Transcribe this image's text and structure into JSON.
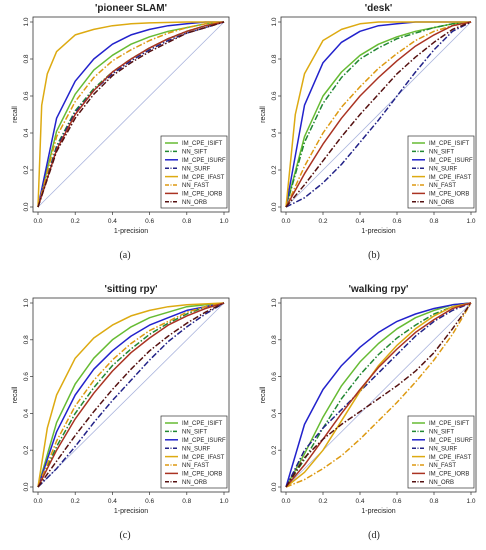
{
  "figure": {
    "panels": [
      {
        "caption": "(a)"
      },
      {
        "caption": "(b)"
      },
      {
        "caption": "(c)"
      },
      {
        "caption": "(d)"
      }
    ]
  },
  "legend_entries": [
    {
      "name": "IM_CPE_ISIFT",
      "color": "#66bb33",
      "dash": "solid"
    },
    {
      "name": "NN_SIFT",
      "color": "#228833",
      "dash": "dashdot"
    },
    {
      "name": "IM_CPE_ISURF",
      "color": "#2222cc",
      "dash": "solid"
    },
    {
      "name": "NN_SURF",
      "color": "#222288",
      "dash": "dashdot"
    },
    {
      "name": "IM_CPE_IFAST",
      "color": "#ddaa11",
      "dash": "solid"
    },
    {
      "name": "NN_FAST",
      "color": "#dd9911",
      "dash": "dashdot"
    },
    {
      "name": "IM_CPE_IORB",
      "color": "#aa3322",
      "dash": "solid"
    },
    {
      "name": "NN_ORB",
      "color": "#551111",
      "dash": "dashdot"
    }
  ],
  "chart_data": [
    {
      "type": "line",
      "title": "'pioneer SLAM'",
      "xlabel": "1-precision",
      "ylabel": "recall",
      "xlim": [
        0,
        1
      ],
      "ylim": [
        0,
        1
      ],
      "xticks": [
        "0.0",
        "0.2",
        "0.4",
        "0.6",
        "0.8",
        "1.0"
      ],
      "yticks": [
        "0.0",
        "0.2",
        "0.4",
        "0.6",
        "0.8",
        "1.0"
      ],
      "legend": "bottom-right",
      "series": [
        {
          "name": "IM_CPE_ISIFT",
          "x": [
            0,
            0.1,
            0.2,
            0.3,
            0.4,
            0.5,
            0.6,
            0.7,
            0.8,
            0.9,
            1.0
          ],
          "y": [
            0,
            0.41,
            0.61,
            0.74,
            0.82,
            0.88,
            0.92,
            0.95,
            0.97,
            0.99,
            1.0
          ]
        },
        {
          "name": "NN_SIFT",
          "x": [
            0,
            0.1,
            0.2,
            0.3,
            0.4,
            0.5,
            0.6,
            0.7,
            0.8,
            0.9,
            1.0
          ],
          "y": [
            0,
            0.33,
            0.52,
            0.64,
            0.73,
            0.8,
            0.86,
            0.91,
            0.95,
            0.98,
            1.0
          ]
        },
        {
          "name": "IM_CPE_ISURF",
          "x": [
            0,
            0.1,
            0.2,
            0.3,
            0.4,
            0.5,
            0.6,
            0.7,
            0.8,
            0.9,
            1.0
          ],
          "y": [
            0,
            0.48,
            0.68,
            0.8,
            0.88,
            0.93,
            0.96,
            0.98,
            0.99,
            1.0,
            1.0
          ]
        },
        {
          "name": "NN_SURF",
          "x": [
            0,
            0.1,
            0.2,
            0.3,
            0.4,
            0.5,
            0.6,
            0.7,
            0.8,
            0.9,
            1.0
          ],
          "y": [
            0,
            0.32,
            0.51,
            0.63,
            0.72,
            0.79,
            0.85,
            0.9,
            0.94,
            0.97,
            1.0
          ]
        },
        {
          "name": "IM_CPE_IFAST",
          "x": [
            0,
            0.02,
            0.05,
            0.1,
            0.2,
            0.3,
            0.4,
            0.5,
            0.6,
            0.8,
            1.0
          ],
          "y": [
            0,
            0.55,
            0.72,
            0.84,
            0.93,
            0.96,
            0.98,
            0.99,
            0.995,
            1.0,
            1.0
          ]
        },
        {
          "name": "NN_FAST",
          "x": [
            0,
            0.1,
            0.2,
            0.3,
            0.4,
            0.5,
            0.6,
            0.7,
            0.8,
            0.9,
            1.0
          ],
          "y": [
            0,
            0.38,
            0.57,
            0.7,
            0.79,
            0.85,
            0.9,
            0.94,
            0.97,
            0.99,
            1.0
          ]
        },
        {
          "name": "IM_CPE_IORB",
          "x": [
            0,
            0.1,
            0.2,
            0.3,
            0.4,
            0.5,
            0.6,
            0.7,
            0.8,
            0.9,
            1.0
          ],
          "y": [
            0,
            0.31,
            0.5,
            0.63,
            0.73,
            0.8,
            0.86,
            0.91,
            0.95,
            0.98,
            1.0
          ]
        },
        {
          "name": "NN_ORB",
          "x": [
            0,
            0.1,
            0.2,
            0.3,
            0.4,
            0.5,
            0.6,
            0.7,
            0.8,
            0.9,
            1.0
          ],
          "y": [
            0,
            0.3,
            0.48,
            0.61,
            0.71,
            0.78,
            0.84,
            0.89,
            0.94,
            0.97,
            1.0
          ]
        }
      ]
    },
    {
      "type": "line",
      "title": "'desk'",
      "xlabel": "1-precision",
      "ylabel": "recall",
      "xlim": [
        0,
        1
      ],
      "ylim": [
        0,
        1
      ],
      "xticks": [
        "0.0",
        "0.2",
        "0.4",
        "0.6",
        "0.8",
        "1.0"
      ],
      "yticks": [
        "0.0",
        "0.2",
        "0.4",
        "0.6",
        "0.8",
        "1.0"
      ],
      "legend": "bottom-right",
      "series": [
        {
          "name": "IM_CPE_ISIFT",
          "x": [
            0,
            0.1,
            0.2,
            0.3,
            0.4,
            0.5,
            0.6,
            0.7,
            0.8,
            0.9,
            1.0
          ],
          "y": [
            0,
            0.38,
            0.6,
            0.73,
            0.82,
            0.88,
            0.92,
            0.95,
            0.97,
            0.99,
            1.0
          ]
        },
        {
          "name": "NN_SIFT",
          "x": [
            0,
            0.1,
            0.2,
            0.3,
            0.4,
            0.5,
            0.6,
            0.7,
            0.8,
            0.9,
            1.0
          ],
          "y": [
            0,
            0.35,
            0.56,
            0.7,
            0.8,
            0.86,
            0.91,
            0.94,
            0.97,
            0.99,
            1.0
          ]
        },
        {
          "name": "IM_CPE_ISURF",
          "x": [
            0,
            0.1,
            0.2,
            0.3,
            0.4,
            0.5,
            0.6,
            0.7,
            0.8,
            0.9,
            1.0
          ],
          "y": [
            0,
            0.55,
            0.78,
            0.89,
            0.95,
            0.98,
            0.99,
            1.0,
            1.0,
            1.0,
            1.0
          ]
        },
        {
          "name": "NN_SURF",
          "x": [
            0,
            0.1,
            0.2,
            0.3,
            0.4,
            0.5,
            0.6,
            0.7,
            0.8,
            0.9,
            1.0
          ],
          "y": [
            0,
            0.05,
            0.13,
            0.23,
            0.35,
            0.47,
            0.6,
            0.73,
            0.85,
            0.95,
            1.0
          ]
        },
        {
          "name": "IM_CPE_IFAST",
          "x": [
            0,
            0.05,
            0.1,
            0.2,
            0.3,
            0.4,
            0.5,
            0.6,
            0.7,
            0.8,
            1.0
          ],
          "y": [
            0,
            0.5,
            0.72,
            0.9,
            0.96,
            0.99,
            1.0,
            1.0,
            1.0,
            1.0,
            1.0
          ]
        },
        {
          "name": "NN_FAST",
          "x": [
            0,
            0.1,
            0.2,
            0.3,
            0.4,
            0.5,
            0.6,
            0.7,
            0.8,
            0.9,
            1.0
          ],
          "y": [
            0,
            0.22,
            0.4,
            0.54,
            0.65,
            0.75,
            0.83,
            0.9,
            0.95,
            0.98,
            1.0
          ]
        },
        {
          "name": "IM_CPE_IORB",
          "x": [
            0,
            0.1,
            0.2,
            0.3,
            0.4,
            0.5,
            0.6,
            0.7,
            0.8,
            0.9,
            1.0
          ],
          "y": [
            0,
            0.18,
            0.34,
            0.48,
            0.6,
            0.7,
            0.79,
            0.87,
            0.93,
            0.98,
            1.0
          ]
        },
        {
          "name": "NN_ORB",
          "x": [
            0,
            0.1,
            0.2,
            0.3,
            0.4,
            0.5,
            0.6,
            0.7,
            0.8,
            0.9,
            1.0
          ],
          "y": [
            0,
            0.12,
            0.25,
            0.38,
            0.5,
            0.61,
            0.72,
            0.81,
            0.89,
            0.96,
            1.0
          ]
        }
      ]
    },
    {
      "type": "line",
      "title": "'sitting rpy'",
      "xlabel": "1-precision",
      "ylabel": "recall",
      "xlim": [
        0,
        1
      ],
      "ylim": [
        0,
        1
      ],
      "xticks": [
        "0.0",
        "0.2",
        "0.4",
        "0.6",
        "0.8",
        "1.0"
      ],
      "yticks": [
        "0.0",
        "0.2",
        "0.4",
        "0.6",
        "0.8",
        "1.0"
      ],
      "legend": "bottom-right",
      "series": [
        {
          "name": "IM_CPE_ISIFT",
          "x": [
            0,
            0.1,
            0.2,
            0.3,
            0.4,
            0.5,
            0.6,
            0.7,
            0.8,
            0.9,
            1.0
          ],
          "y": [
            0,
            0.35,
            0.56,
            0.7,
            0.8,
            0.87,
            0.92,
            0.95,
            0.98,
            0.99,
            1.0
          ]
        },
        {
          "name": "NN_SIFT",
          "x": [
            0,
            0.1,
            0.2,
            0.3,
            0.4,
            0.5,
            0.6,
            0.7,
            0.8,
            0.9,
            1.0
          ],
          "y": [
            0,
            0.22,
            0.4,
            0.54,
            0.66,
            0.75,
            0.83,
            0.89,
            0.94,
            0.98,
            1.0
          ]
        },
        {
          "name": "IM_CPE_ISURF",
          "x": [
            0,
            0.1,
            0.2,
            0.3,
            0.4,
            0.5,
            0.6,
            0.7,
            0.8,
            0.9,
            1.0
          ],
          "y": [
            0,
            0.3,
            0.5,
            0.64,
            0.74,
            0.82,
            0.88,
            0.92,
            0.96,
            0.98,
            1.0
          ]
        },
        {
          "name": "NN_SURF",
          "x": [
            0,
            0.1,
            0.2,
            0.3,
            0.4,
            0.5,
            0.6,
            0.7,
            0.8,
            0.9,
            1.0
          ],
          "y": [
            0,
            0.1,
            0.22,
            0.35,
            0.47,
            0.58,
            0.69,
            0.79,
            0.87,
            0.94,
            1.0
          ]
        },
        {
          "name": "IM_CPE_IFAST",
          "x": [
            0,
            0.05,
            0.1,
            0.2,
            0.3,
            0.4,
            0.5,
            0.6,
            0.7,
            0.8,
            1.0
          ],
          "y": [
            0,
            0.32,
            0.5,
            0.7,
            0.81,
            0.88,
            0.93,
            0.96,
            0.98,
            0.99,
            1.0
          ]
        },
        {
          "name": "NN_FAST",
          "x": [
            0,
            0.1,
            0.2,
            0.3,
            0.4,
            0.5,
            0.6,
            0.7,
            0.8,
            0.9,
            1.0
          ],
          "y": [
            0,
            0.25,
            0.44,
            0.58,
            0.69,
            0.78,
            0.85,
            0.9,
            0.95,
            0.98,
            1.0
          ]
        },
        {
          "name": "IM_CPE_IORB",
          "x": [
            0,
            0.1,
            0.2,
            0.3,
            0.4,
            0.5,
            0.6,
            0.7,
            0.8,
            0.9,
            1.0
          ],
          "y": [
            0,
            0.2,
            0.37,
            0.51,
            0.63,
            0.73,
            0.81,
            0.88,
            0.93,
            0.97,
            1.0
          ]
        },
        {
          "name": "NN_ORB",
          "x": [
            0,
            0.1,
            0.2,
            0.3,
            0.4,
            0.5,
            0.6,
            0.7,
            0.8,
            0.9,
            1.0
          ],
          "y": [
            0,
            0.14,
            0.28,
            0.41,
            0.53,
            0.64,
            0.74,
            0.82,
            0.89,
            0.95,
            1.0
          ]
        }
      ]
    },
    {
      "type": "line",
      "title": "'walking rpy'",
      "xlabel": "1-precision",
      "ylabel": "recall",
      "xlim": [
        0,
        1
      ],
      "ylim": [
        0,
        1
      ],
      "xticks": [
        "0.0",
        "0.2",
        "0.4",
        "0.6",
        "0.8",
        "1.0"
      ],
      "yticks": [
        "0.0",
        "0.2",
        "0.4",
        "0.6",
        "0.8",
        "1.0"
      ],
      "legend": "bottom-right",
      "series": [
        {
          "name": "IM_CPE_ISIFT",
          "x": [
            0,
            0.1,
            0.2,
            0.3,
            0.4,
            0.5,
            0.6,
            0.7,
            0.8,
            0.9,
            1.0
          ],
          "y": [
            0,
            0.18,
            0.38,
            0.55,
            0.68,
            0.78,
            0.86,
            0.92,
            0.96,
            0.99,
            1.0
          ]
        },
        {
          "name": "NN_SIFT",
          "x": [
            0,
            0.1,
            0.2,
            0.3,
            0.4,
            0.5,
            0.6,
            0.7,
            0.8,
            0.9,
            1.0
          ],
          "y": [
            0,
            0.15,
            0.32,
            0.48,
            0.61,
            0.72,
            0.81,
            0.88,
            0.94,
            0.98,
            1.0
          ]
        },
        {
          "name": "IM_CPE_ISURF",
          "x": [
            0,
            0.1,
            0.2,
            0.3,
            0.4,
            0.5,
            0.6,
            0.7,
            0.8,
            0.9,
            1.0
          ],
          "y": [
            0,
            0.34,
            0.53,
            0.66,
            0.76,
            0.84,
            0.9,
            0.94,
            0.97,
            0.99,
            1.0
          ]
        },
        {
          "name": "NN_SURF",
          "x": [
            0,
            0.1,
            0.2,
            0.3,
            0.4,
            0.5,
            0.6,
            0.7,
            0.8,
            0.9,
            1.0
          ],
          "y": [
            0,
            0.2,
            0.32,
            0.42,
            0.52,
            0.62,
            0.72,
            0.82,
            0.9,
            0.96,
            1.0
          ]
        },
        {
          "name": "IM_CPE_IFAST",
          "x": [
            0,
            0.1,
            0.2,
            0.3,
            0.4,
            0.5,
            0.6,
            0.7,
            0.8,
            0.9,
            1.0
          ],
          "y": [
            0,
            0.08,
            0.2,
            0.36,
            0.52,
            0.66,
            0.77,
            0.86,
            0.93,
            0.98,
            1.0
          ]
        },
        {
          "name": "NN_FAST",
          "x": [
            0,
            0.1,
            0.2,
            0.3,
            0.4,
            0.5,
            0.6,
            0.7,
            0.8,
            0.9,
            1.0
          ],
          "y": [
            0,
            0.04,
            0.1,
            0.17,
            0.26,
            0.36,
            0.46,
            0.57,
            0.69,
            0.83,
            1.0
          ]
        },
        {
          "name": "IM_CPE_IORB",
          "x": [
            0,
            0.1,
            0.2,
            0.3,
            0.4,
            0.5,
            0.6,
            0.7,
            0.8,
            0.9,
            1.0
          ],
          "y": [
            0,
            0.12,
            0.26,
            0.4,
            0.53,
            0.65,
            0.75,
            0.84,
            0.91,
            0.97,
            1.0
          ]
        },
        {
          "name": "NN_ORB",
          "x": [
            0,
            0.1,
            0.2,
            0.3,
            0.4,
            0.5,
            0.6,
            0.7,
            0.8,
            0.9,
            1.0
          ],
          "y": [
            0,
            0.16,
            0.26,
            0.34,
            0.41,
            0.48,
            0.55,
            0.63,
            0.73,
            0.86,
            1.0
          ]
        }
      ]
    }
  ]
}
